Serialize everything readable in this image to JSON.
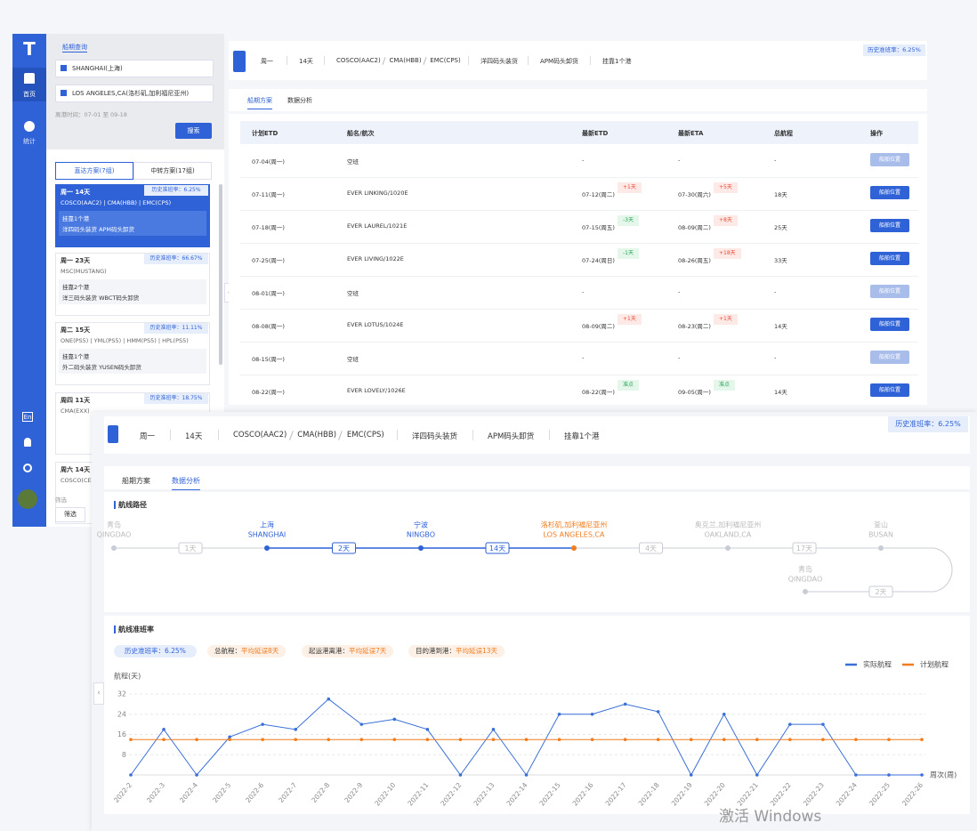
{
  "sidebar": {
    "home": "首页",
    "stats": "统计",
    "lang": "En"
  },
  "query": {
    "title": "船期查询",
    "origin": "SHANGHAI(上海)",
    "destination": "LOS ANGELES,CA(洛杉矶,加利福尼亚州)",
    "date_range": "离港时间：07-01 至 09-18",
    "search": "搜索",
    "tabs": [
      "直达方案(7组)",
      "中转方案(17组)"
    ],
    "cards": [
      {
        "day": "周一  14天",
        "rate": "历史准班率：6.25%",
        "carriers": "COSCO(AAC2) | CMA(HBB) | EMC(CPS)",
        "stops": "挂靠1个港",
        "terminals": "洋四码头装货  APM码头卸货"
      },
      {
        "day": "周一  23天",
        "rate": "历史准班率：66.67%",
        "carriers": "MSC(MUSTANG)",
        "stops": "挂靠2个港",
        "terminals": "洋三码头装货  WBCT码头卸货"
      },
      {
        "day": "周二  15天",
        "rate": "历史准班率：11.11%",
        "carriers": "ONE(PS5) | YML(PS5) | HMM(PS5) | HPL(PS5)",
        "stops": "挂靠1个港",
        "terminals": "外二码头装货  YUSEN码头卸货"
      },
      {
        "day": "周四  11天",
        "rate": "历史准班率：18.75%",
        "carriers": "CMA(EXX)"
      },
      {
        "day": "周六  14天",
        "carriers": "COSCO(CE"
      }
    ],
    "filter_label": "筛选",
    "filter_button": "筛选"
  },
  "summary": {
    "day": "周一",
    "duration": "14天",
    "carriers": [
      "COSCO(AAC2)",
      "CMA(HBB)",
      "EMC(CPS)"
    ],
    "loading": "洋四码头装货",
    "unloading": "APM码头卸货",
    "stops": "挂靠1个港",
    "rate": "历史准班率：6.25%"
  },
  "tabs": [
    "船期方案",
    "数据分析"
  ],
  "table": {
    "headers": [
      "计划ETD",
      "船名/航次",
      "最新ETD",
      "最新ETA",
      "总航程",
      "操作"
    ],
    "rows": [
      {
        "etd": "07-04(周一)",
        "vessel": "空班",
        "new_etd": "-",
        "new_eta": "-",
        "total": "-",
        "action": "船舶位置",
        "action_enabled": false
      },
      {
        "etd": "07-11(周一)",
        "vessel": "EVER LINKING/1020E",
        "new_etd": "07-12(周二)",
        "etd_delta": "+1天",
        "new_eta": "07-30(周六)",
        "eta_delta": "+5天",
        "total": "18天",
        "action": "船舶位置",
        "action_enabled": true
      },
      {
        "etd": "07-18(周一)",
        "vessel": "EVER LAUREL/1021E",
        "new_etd": "07-15(周五)",
        "etd_delta": "-3天",
        "new_eta": "08-09(周二)",
        "eta_delta": "+8天",
        "total": "25天",
        "action": "船舶位置",
        "action_enabled": true
      },
      {
        "etd": "07-25(周一)",
        "vessel": "EVER LIVING/1022E",
        "new_etd": "07-24(周日)",
        "etd_delta": "-1天",
        "new_eta": "08-26(周五)",
        "eta_delta": "+18天",
        "total": "33天",
        "action": "船舶位置",
        "action_enabled": true
      },
      {
        "etd": "08-01(周一)",
        "vessel": "空班",
        "new_etd": "-",
        "new_eta": "-",
        "total": "-",
        "action": "船舶位置",
        "action_enabled": false
      },
      {
        "etd": "08-08(周一)",
        "vessel": "EVER LOTUS/1024E",
        "new_etd": "08-09(周二)",
        "etd_delta": "+1天",
        "new_eta": "08-23(周二)",
        "eta_delta": "+1天",
        "total": "14天",
        "action": "船舶位置",
        "action_enabled": true
      },
      {
        "etd": "08-15(周一)",
        "vessel": "空班",
        "new_etd": "-",
        "new_eta": "-",
        "total": "-",
        "action": "船舶位置",
        "action_enabled": false
      },
      {
        "etd": "08-22(周一)",
        "vessel": "EVER LOVELY/1026E",
        "new_etd": "08-22(周一)",
        "etd_delta": "准点",
        "new_eta": "09-05(周一)",
        "eta_delta": "准点",
        "total": "14天",
        "action": "船舶位置",
        "action_enabled": true
      }
    ]
  },
  "route": {
    "title": "航线路径",
    "nodes": [
      {
        "cn": "青岛",
        "en": "QINGDAO",
        "color": "#c8ccd4"
      },
      {
        "cn": "上海",
        "en": "SHANGHAI",
        "color": "#2f62d6"
      },
      {
        "cn": "宁波",
        "en": "NINGBO",
        "color": "#2f62d6"
      },
      {
        "cn": "洛杉矶,加利福尼亚州",
        "en": "LOS ANGELES,CA",
        "color": "#f07c1e"
      },
      {
        "cn": "奥克兰,加利福尼亚州",
        "en": "OAKLAND,CA",
        "color": "#c8ccd4"
      },
      {
        "cn": "釜山",
        "en": "BUSAN",
        "color": "#c8ccd4"
      },
      {
        "cn": "青岛",
        "en": "QINGDAO",
        "color": "#c8ccd4"
      }
    ],
    "legs": [
      {
        "label": "1天",
        "color": "#c8ccd4"
      },
      {
        "label": "2天",
        "color": "#2f62d6"
      },
      {
        "label": "14天",
        "color": "#2f62d6"
      },
      {
        "label": "4天",
        "color": "#c8ccd4"
      },
      {
        "label": "17天",
        "color": "#c8ccd4"
      },
      {
        "label": "2天",
        "color": "#c8ccd4"
      }
    ]
  },
  "punctuality": {
    "title": "航线准班率",
    "badges": [
      {
        "label": "总航程：",
        "value": "平均延误8天"
      },
      {
        "label": "起运港离港：",
        "value": "平均延误7天"
      },
      {
        "label": "目的港到港：",
        "value": "平均延误13天"
      }
    ]
  },
  "chart_data": {
    "type": "line",
    "y_label": "航程(天)",
    "x_label": "周次(周)",
    "categories": [
      "2022-2",
      "2022-3",
      "2022-4",
      "2022-5",
      "2022-6",
      "2022-7",
      "2022-8",
      "2022-9",
      "2022-10",
      "2022-11",
      "2022-12",
      "2022-13",
      "2022-14",
      "2022-15",
      "2022-16",
      "2022-17",
      "2022-18",
      "2022-19",
      "2022-20",
      "2022-21",
      "2022-22",
      "2022-23",
      "2022-24",
      "2022-25",
      "2022-26"
    ],
    "series": [
      {
        "name": "实际航程",
        "color": "#3a6fd8",
        "values": [
          0,
          18,
          0,
          15,
          20,
          18,
          30,
          20,
          22,
          18,
          0,
          18,
          0,
          24,
          24,
          28,
          25,
          0,
          24,
          0,
          20,
          20,
          0,
          0,
          0
        ]
      },
      {
        "name": "计划航程",
        "color": "#f07c1e",
        "values": [
          14,
          14,
          14,
          14,
          14,
          14,
          14,
          14,
          14,
          14,
          14,
          14,
          14,
          14,
          14,
          14,
          14,
          14,
          14,
          14,
          14,
          14,
          14,
          14,
          14
        ]
      }
    ],
    "ylim": [
      0,
      32
    ],
    "yticks": [
      8,
      16,
      24,
      32
    ],
    "grid": true,
    "legend": "top-right"
  },
  "watermark": "激活 Windows"
}
